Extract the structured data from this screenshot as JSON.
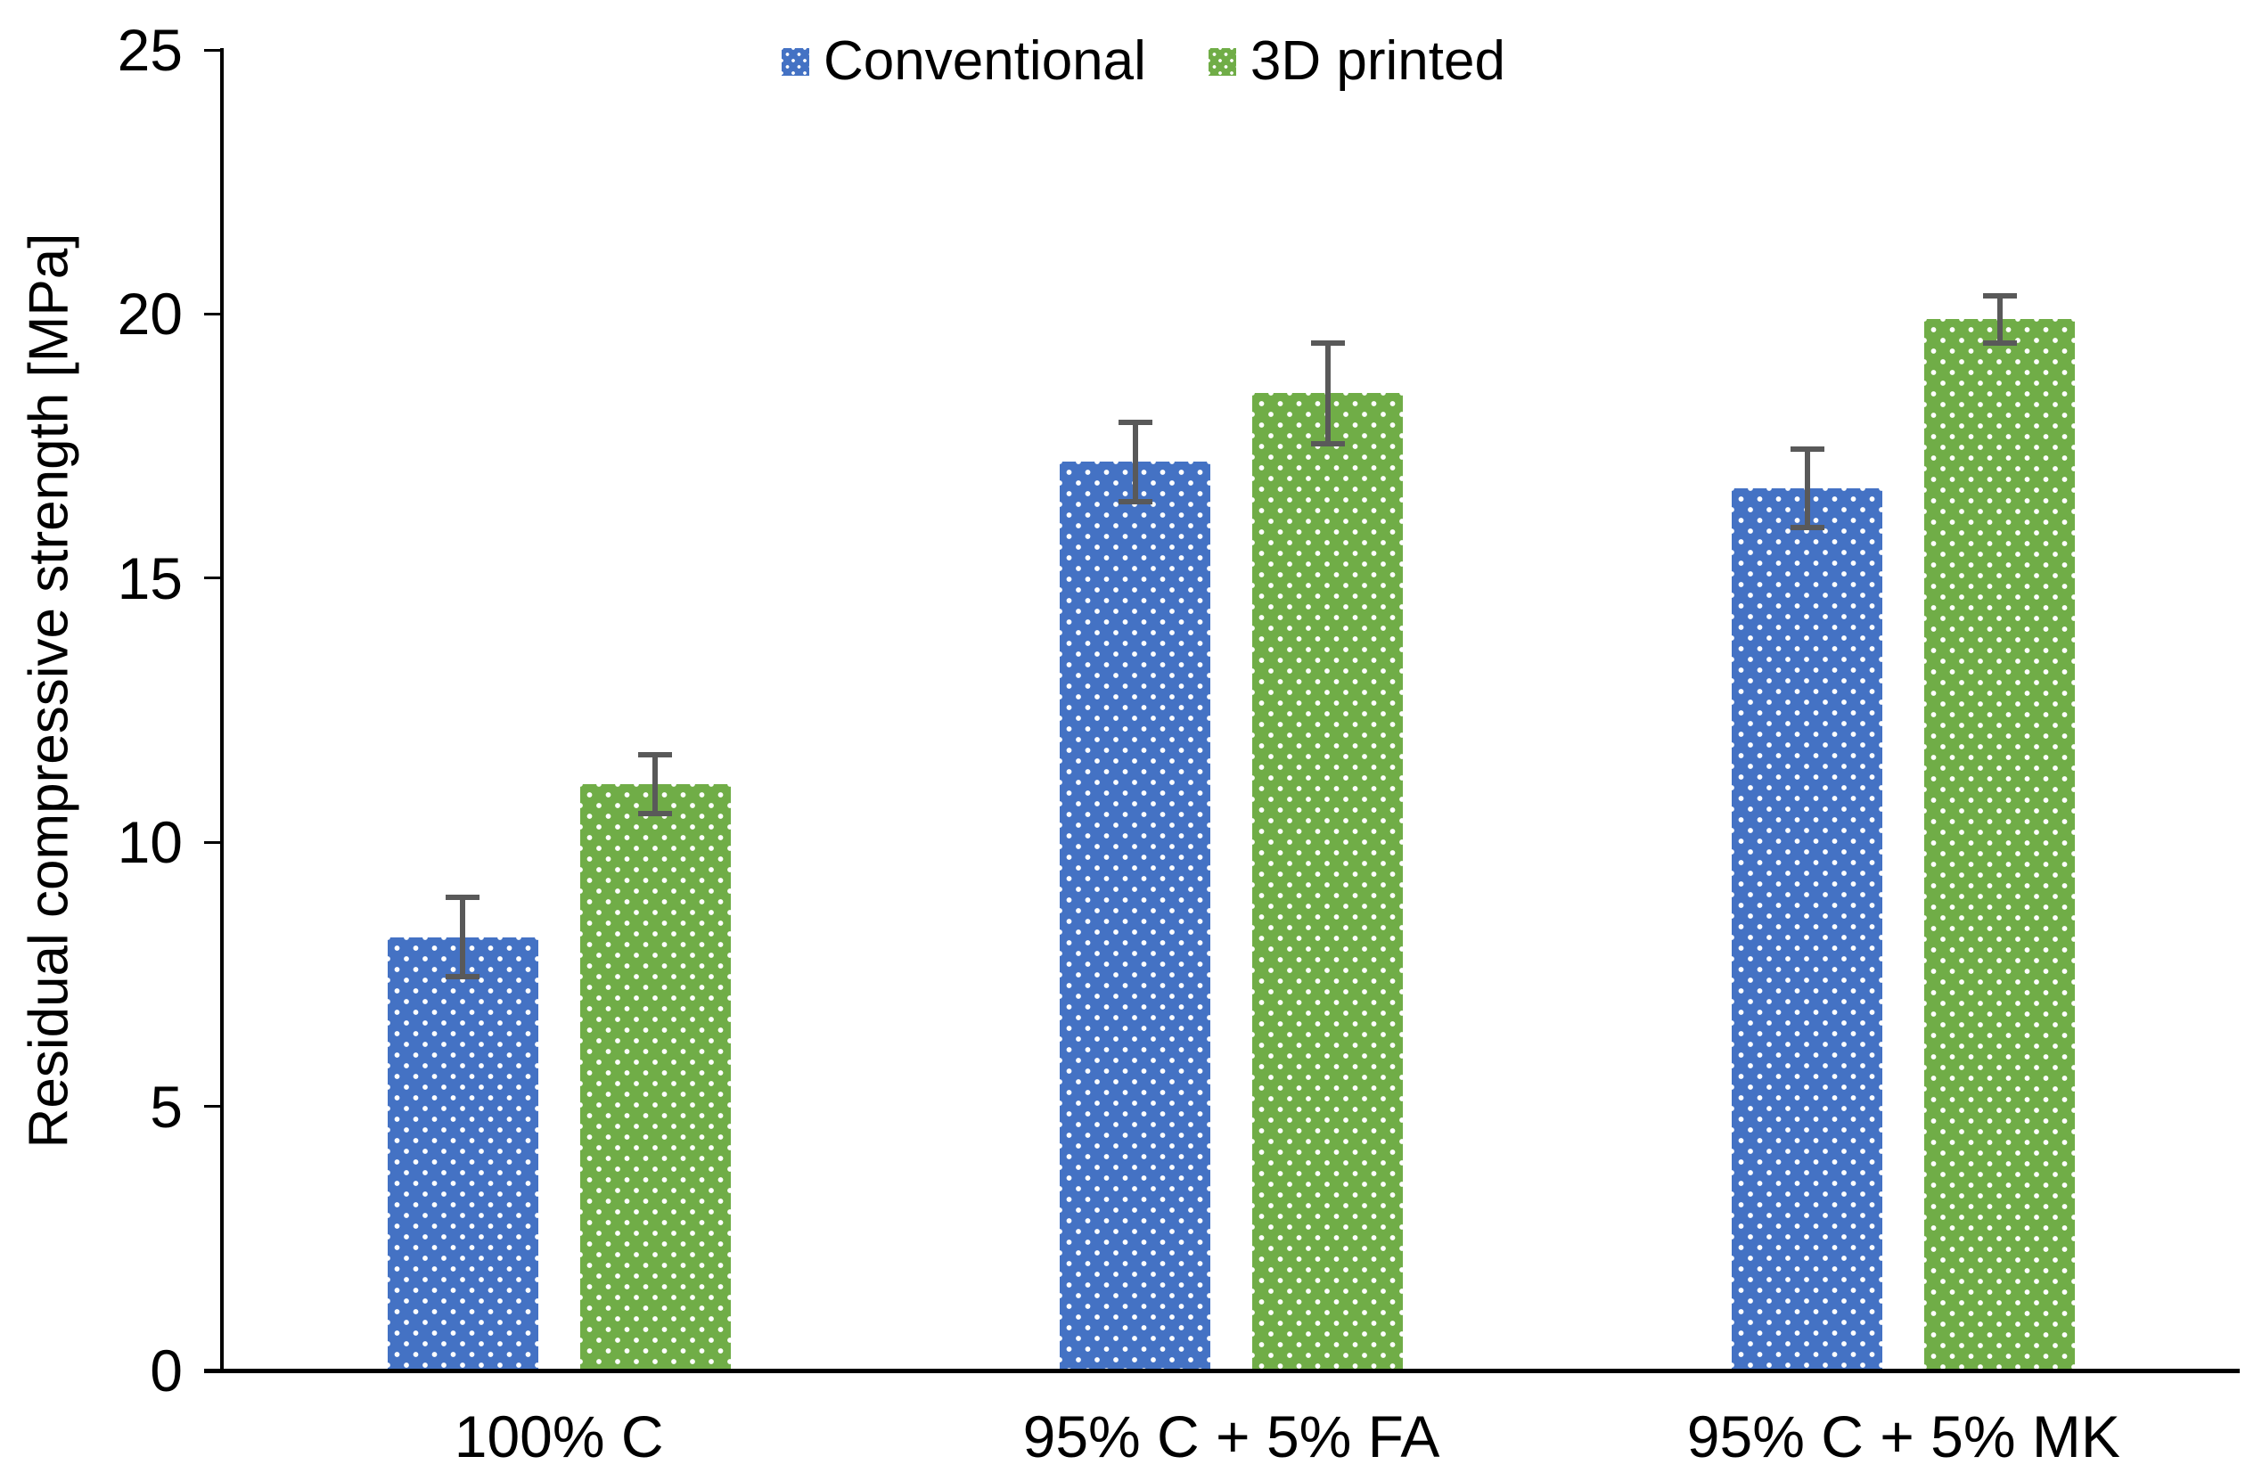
{
  "chart_data": {
    "type": "bar",
    "title": "",
    "xlabel": "",
    "ylabel": "Residual compressive strength [MPa]",
    "categories": [
      "100% C",
      "95% C + 5% FA",
      "95% C + 5% MK"
    ],
    "series": [
      {
        "name": "Conventional",
        "color": "#4472C4",
        "values": [
          8.2,
          17.2,
          16.7
        ],
        "errors": [
          0.8,
          0.8,
          0.8
        ]
      },
      {
        "name": "3D printed",
        "color": "#70AD47",
        "values": [
          11.1,
          18.5,
          19.9
        ],
        "errors": [
          0.6,
          1.0,
          0.5
        ]
      }
    ],
    "ylim": [
      0,
      25
    ],
    "yticks": [
      0,
      5,
      10,
      15,
      20,
      25
    ],
    "grid": false,
    "legend_position": "top-center",
    "error_bar_color": "#595959",
    "axis_color": "#000000",
    "fill_pattern": "white-dots"
  }
}
